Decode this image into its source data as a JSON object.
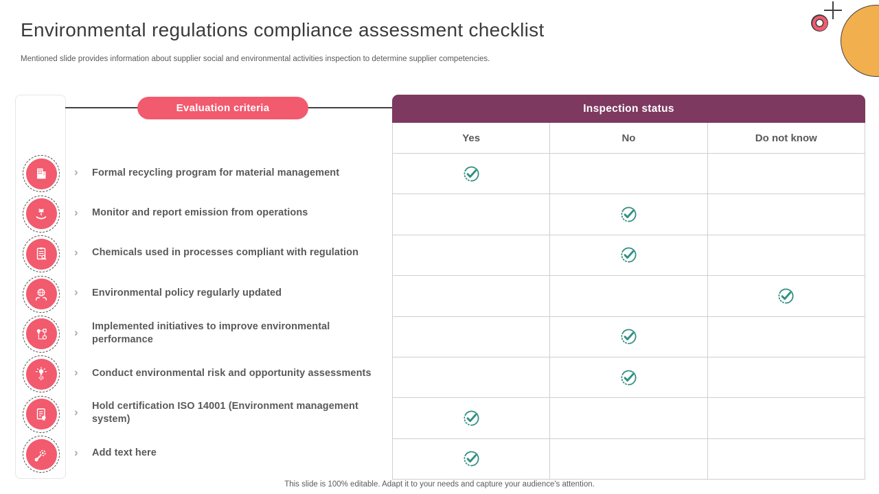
{
  "slide": {
    "title": "Environmental regulations compliance assessment checklist",
    "subtitle": "Mentioned slide provides information about supplier social and environmental activities inspection to determine supplier competencies.",
    "footer": "This slide is 100% editable. Adapt it to your needs and capture your audience's attention."
  },
  "evaluation": {
    "pill_label": "Evaluation criteria"
  },
  "table": {
    "header": "Inspection status",
    "columns": [
      "Yes",
      "No",
      "Do not know"
    ],
    "rows": [
      {
        "criteria": "Formal recycling program for material management",
        "status": "Yes"
      },
      {
        "criteria": "Monitor and report emission from operations",
        "status": "No"
      },
      {
        "criteria": "Chemicals used in processes compliant with regulation",
        "status": "No"
      },
      {
        "criteria": "Environmental policy regularly updated",
        "status": "Do not know"
      },
      {
        "criteria": "Implemented initiatives to improve environmental performance",
        "status": "No"
      },
      {
        "criteria": "Conduct environmental risk and opportunity assessments",
        "status": "No"
      },
      {
        "criteria": "Hold certification ISO 14001 (Environment management system)",
        "status": "Yes"
      },
      {
        "criteria": "Add text here",
        "status": "Yes"
      }
    ]
  },
  "sidebar": {
    "icons": [
      "building-icon",
      "eco-hand-icon",
      "checklist-search-icon",
      "globe-hands-icon",
      "process-idea-icon",
      "innovation-gear-icon",
      "certificate-document-icon",
      "tools-gear-icon"
    ]
  },
  "colors": {
    "pink": "#F25A6E",
    "maroon": "#7D3960",
    "teal": "#2F8F80",
    "orange": "#F2AF4D",
    "border": "#D0CECE",
    "text_gray": "#595959",
    "title_gray": "#3B3B3B",
    "line_dark": "#3F3F3F"
  }
}
